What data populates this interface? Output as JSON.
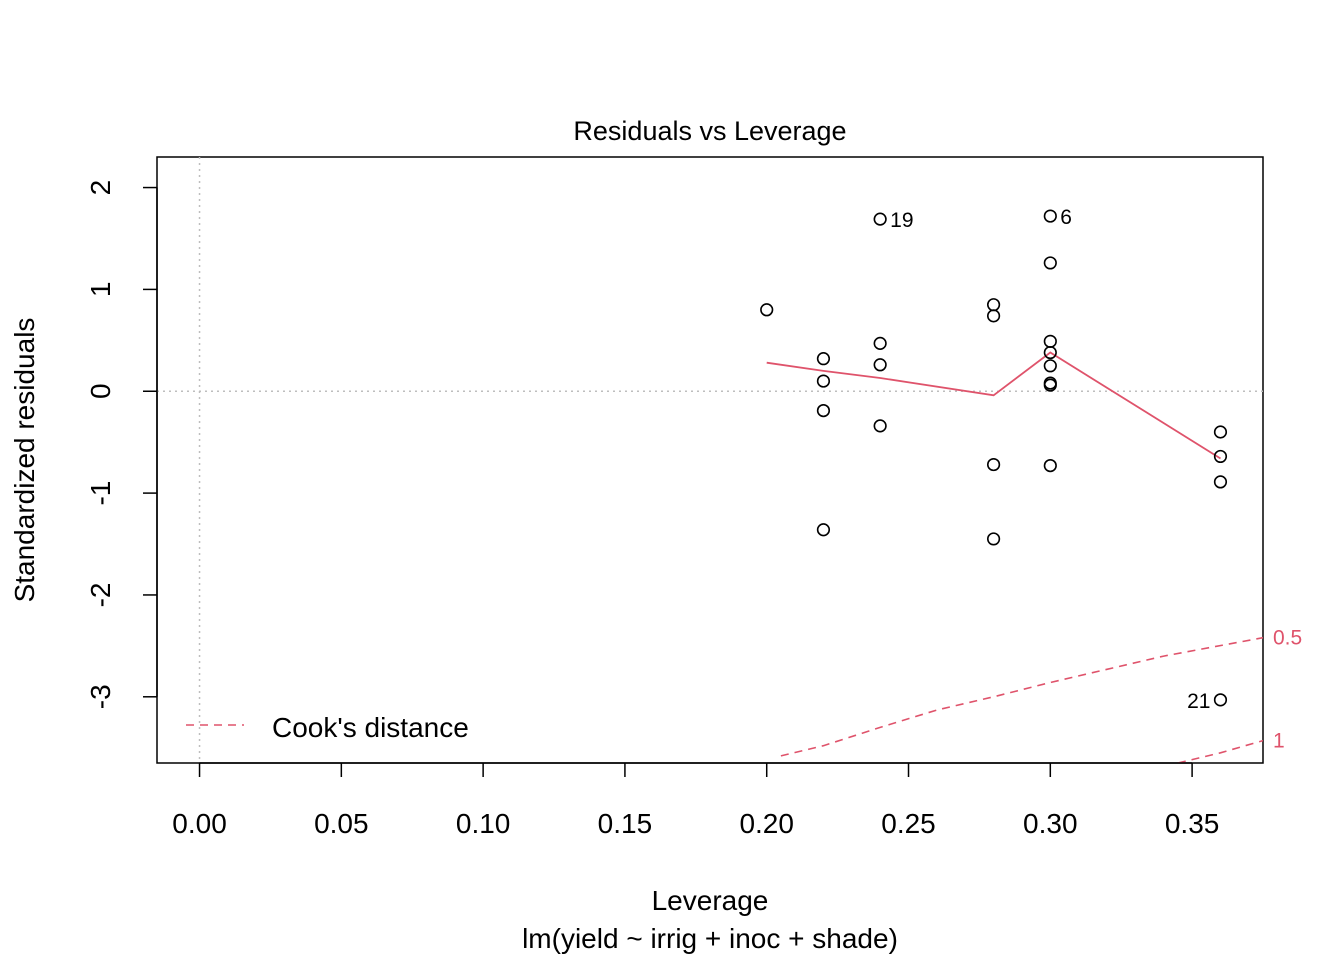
{
  "chart_data": {
    "type": "scatter",
    "title": "Residuals vs Leverage",
    "xlabel": "Leverage",
    "subtitle": "lm(yield ~ irrig + inoc + shade)",
    "ylabel": "Standardized residuals",
    "xlim": [
      -0.015,
      0.375
    ],
    "ylim": [
      -3.65,
      2.3
    ],
    "x_ticks": [
      "0.00",
      "0.05",
      "0.10",
      "0.15",
      "0.20",
      "0.25",
      "0.30",
      "0.35"
    ],
    "x_tick_values": [
      0.0,
      0.05,
      0.1,
      0.15,
      0.2,
      0.25,
      0.3,
      0.35
    ],
    "y_ticks": [
      "-3",
      "-2",
      "-1",
      "0",
      "1",
      "2"
    ],
    "y_tick_values": [
      -3,
      -2,
      -1,
      0,
      1,
      2
    ],
    "points": [
      {
        "x": 0.2,
        "y": 0.8
      },
      {
        "x": 0.22,
        "y": 0.32
      },
      {
        "x": 0.22,
        "y": 0.1
      },
      {
        "x": 0.22,
        "y": -0.19
      },
      {
        "x": 0.22,
        "y": -1.36
      },
      {
        "x": 0.24,
        "y": 1.69,
        "label": "19"
      },
      {
        "x": 0.24,
        "y": 0.47
      },
      {
        "x": 0.24,
        "y": 0.26
      },
      {
        "x": 0.24,
        "y": -0.34
      },
      {
        "x": 0.28,
        "y": 0.85
      },
      {
        "x": 0.28,
        "y": 0.74
      },
      {
        "x": 0.28,
        "y": -0.72
      },
      {
        "x": 0.28,
        "y": -1.45
      },
      {
        "x": 0.3,
        "y": 1.72,
        "label": "6"
      },
      {
        "x": 0.3,
        "y": 1.26
      },
      {
        "x": 0.3,
        "y": 0.49
      },
      {
        "x": 0.3,
        "y": 0.38
      },
      {
        "x": 0.3,
        "y": 0.25
      },
      {
        "x": 0.3,
        "y": 0.08
      },
      {
        "x": 0.3,
        "y": 0.06
      },
      {
        "x": 0.3,
        "y": -0.73
      },
      {
        "x": 0.36,
        "y": -0.4
      },
      {
        "x": 0.36,
        "y": -0.64
      },
      {
        "x": 0.36,
        "y": -0.89
      },
      {
        "x": 0.36,
        "y": -3.03,
        "label": "21"
      }
    ],
    "smooth_line": {
      "x": [
        0.2,
        0.22,
        0.24,
        0.28,
        0.3,
        0.36
      ],
      "y": [
        0.28,
        0.2,
        0.13,
        -0.04,
        0.38,
        -0.66
      ],
      "color": "#DF536B"
    },
    "reference_lines": {
      "h": 0,
      "v": 0,
      "color": "#BEBEBE"
    },
    "cooks_distance": {
      "color": "#DF536B",
      "legend": "Cook's distance",
      "legend_position": "bottom-left",
      "contours": [
        {
          "label": "0.5",
          "x": [
            0.205,
            0.22,
            0.24,
            0.26,
            0.28,
            0.3,
            0.32,
            0.34,
            0.375
          ],
          "y": [
            -3.58,
            -3.48,
            -3.3,
            -3.13,
            -3.0,
            -2.86,
            -2.73,
            -2.6,
            -2.42
          ]
        },
        {
          "label": "1",
          "x": [
            0.345,
            0.36,
            0.375
          ],
          "y": [
            -3.65,
            -3.55,
            -3.43
          ]
        }
      ]
    },
    "grid": false
  }
}
